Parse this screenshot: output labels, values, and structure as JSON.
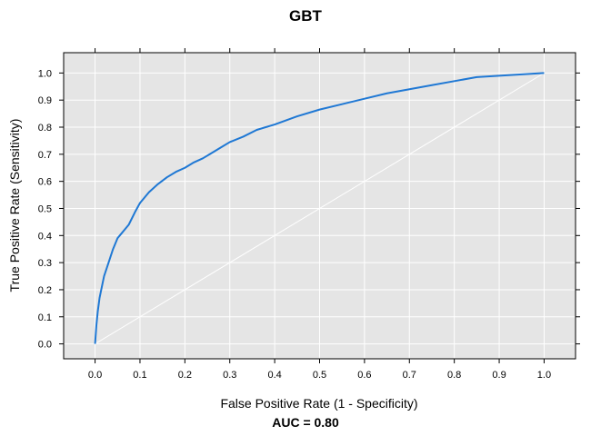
{
  "chart_data": {
    "type": "line",
    "title": "GBT",
    "xlabel": "False Positive Rate (1 - Specificity)",
    "ylabel": "True Positive Rate (Sensitivity)",
    "subtitle": "AUC =  0.80",
    "xlim": [
      -0.07,
      1.07
    ],
    "ylim": [
      -0.055,
      1.075
    ],
    "xticks": [
      "0.0",
      "0.1",
      "0.2",
      "0.3",
      "0.4",
      "0.5",
      "0.6",
      "0.7",
      "0.8",
      "0.9",
      "1.0"
    ],
    "yticks": [
      "0.0",
      "0.1",
      "0.2",
      "0.3",
      "0.4",
      "0.5",
      "0.6",
      "0.7",
      "0.8",
      "0.9",
      "1.0"
    ],
    "grid": true,
    "background": "#e5e5e5",
    "series": [
      {
        "color": "#1f78d4",
        "x": [
          0.0,
          0.003,
          0.006,
          0.01,
          0.015,
          0.02,
          0.03,
          0.04,
          0.05,
          0.06,
          0.075,
          0.09,
          0.1,
          0.12,
          0.14,
          0.16,
          0.18,
          0.2,
          0.22,
          0.24,
          0.26,
          0.28,
          0.3,
          0.33,
          0.36,
          0.4,
          0.45,
          0.5,
          0.55,
          0.6,
          0.65,
          0.7,
          0.75,
          0.8,
          0.85,
          0.9,
          0.95,
          1.0
        ],
        "y": [
          0.0,
          0.07,
          0.12,
          0.17,
          0.21,
          0.25,
          0.3,
          0.35,
          0.39,
          0.41,
          0.44,
          0.49,
          0.52,
          0.56,
          0.59,
          0.615,
          0.635,
          0.65,
          0.67,
          0.685,
          0.705,
          0.725,
          0.745,
          0.765,
          0.79,
          0.81,
          0.84,
          0.865,
          0.885,
          0.905,
          0.925,
          0.94,
          0.955,
          0.97,
          0.985,
          0.99,
          0.995,
          1.0
        ]
      },
      {
        "color": "#ffffff",
        "x": [
          0.0,
          1.0
        ],
        "y": [
          0.0,
          1.0
        ]
      }
    ]
  }
}
